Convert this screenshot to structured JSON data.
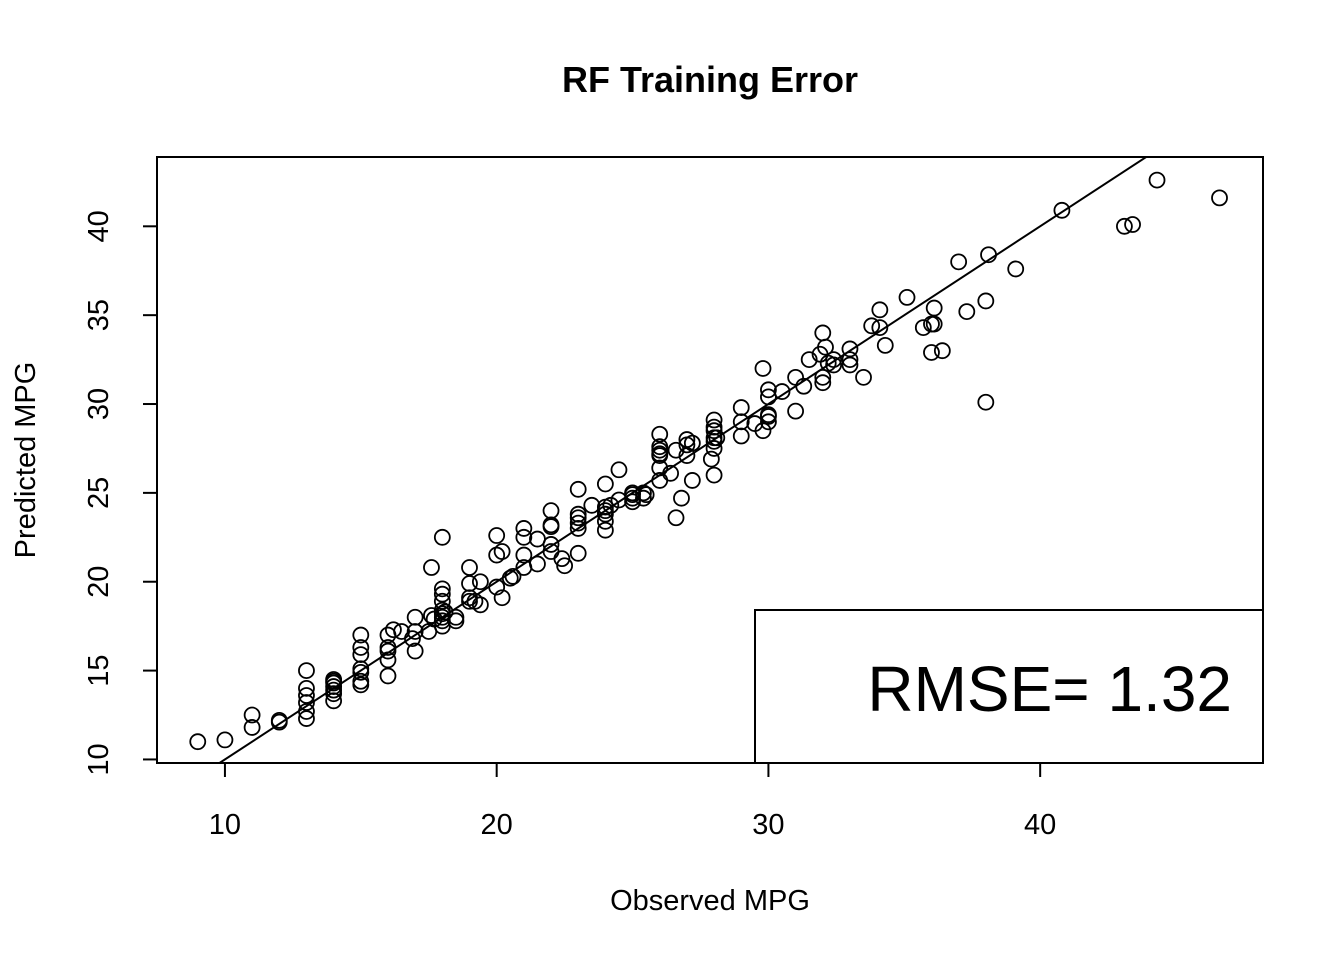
{
  "chart_data": {
    "type": "scatter",
    "title": "RF Training Error",
    "xlabel": "Observed MPG",
    "ylabel": "Predicted MPG",
    "xlim": [
      7.5,
      48.2
    ],
    "ylim": [
      9.8,
      43.9
    ],
    "xticks": [
      10,
      20,
      30,
      40
    ],
    "yticks": [
      10,
      15,
      20,
      25,
      30,
      35,
      40
    ],
    "grid": false,
    "reference_line": {
      "type": "identity",
      "slope": 1,
      "intercept": 0
    },
    "legend": {
      "position": "bottom-right",
      "text": "RMSE= 1.32"
    },
    "points": [
      [
        9,
        11.0
      ],
      [
        10,
        11.1
      ],
      [
        11,
        12.5
      ],
      [
        11,
        11.8
      ],
      [
        12,
        12.1
      ],
      [
        12,
        12.2
      ],
      [
        13,
        15.0
      ],
      [
        13,
        14.0
      ],
      [
        13,
        13.6
      ],
      [
        13,
        13.2
      ],
      [
        13,
        12.7
      ],
      [
        13,
        12.3
      ],
      [
        14,
        14.5
      ],
      [
        14,
        14.4
      ],
      [
        14,
        14.3
      ],
      [
        14,
        14.1
      ],
      [
        14,
        13.9
      ],
      [
        14,
        13.7
      ],
      [
        14,
        13.3
      ],
      [
        15,
        17.0
      ],
      [
        15,
        16.3
      ],
      [
        15,
        15.9
      ],
      [
        15,
        15.1
      ],
      [
        15,
        14.9
      ],
      [
        15,
        14.4
      ],
      [
        15,
        14.2
      ],
      [
        16,
        17.0
      ],
      [
        16,
        16.3
      ],
      [
        16,
        16.1
      ],
      [
        16,
        15.6
      ],
      [
        16,
        14.7
      ],
      [
        16.2,
        17.3
      ],
      [
        16.5,
        17.2
      ],
      [
        16.9,
        16.8
      ],
      [
        17,
        18.0
      ],
      [
        17,
        17.2
      ],
      [
        17,
        16.1
      ],
      [
        17.5,
        17.2
      ],
      [
        17.6,
        18.1
      ],
      [
        17.6,
        20.8
      ],
      [
        17.7,
        17.9
      ],
      [
        18,
        22.5
      ],
      [
        18,
        19.6
      ],
      [
        18,
        19.3
      ],
      [
        18,
        18.9
      ],
      [
        18,
        18.4
      ],
      [
        18,
        18.2
      ],
      [
        18,
        18.0
      ],
      [
        18,
        17.8
      ],
      [
        18,
        17.5
      ],
      [
        18.1,
        18.3
      ],
      [
        18.5,
        18.0
      ],
      [
        18.5,
        17.8
      ],
      [
        19,
        20.8
      ],
      [
        19,
        19.9
      ],
      [
        19,
        19.1
      ],
      [
        19,
        18.9
      ],
      [
        19.2,
        18.9
      ],
      [
        19.4,
        20.0
      ],
      [
        19.4,
        18.7
      ],
      [
        20,
        22.6
      ],
      [
        20,
        21.5
      ],
      [
        20,
        19.7
      ],
      [
        20.2,
        21.7
      ],
      [
        20.2,
        19.1
      ],
      [
        20.5,
        20.2
      ],
      [
        20.6,
        20.3
      ],
      [
        21,
        23.0
      ],
      [
        21,
        22.5
      ],
      [
        21,
        21.5
      ],
      [
        21,
        20.8
      ],
      [
        21.5,
        22.4
      ],
      [
        21.5,
        21.0
      ],
      [
        22,
        24.0
      ],
      [
        22,
        23.2
      ],
      [
        22,
        23.1
      ],
      [
        22,
        22.1
      ],
      [
        22,
        21.7
      ],
      [
        22.4,
        21.3
      ],
      [
        22.5,
        20.9
      ],
      [
        23,
        25.2
      ],
      [
        23,
        23.8
      ],
      [
        23,
        23.6
      ],
      [
        23,
        23.3
      ],
      [
        23,
        23.0
      ],
      [
        23,
        21.6
      ],
      [
        23.5,
        24.3
      ],
      [
        24,
        25.5
      ],
      [
        24,
        24.2
      ],
      [
        24,
        24.0
      ],
      [
        24,
        23.8
      ],
      [
        24,
        23.4
      ],
      [
        24,
        22.9
      ],
      [
        24.2,
        24.3
      ],
      [
        24.5,
        26.3
      ],
      [
        24.5,
        24.6
      ],
      [
        25,
        25.0
      ],
      [
        25,
        24.9
      ],
      [
        25,
        24.7
      ],
      [
        25,
        24.5
      ],
      [
        25.4,
        25.0
      ],
      [
        25.4,
        24.7
      ],
      [
        25.5,
        24.9
      ],
      [
        26,
        28.3
      ],
      [
        26,
        27.6
      ],
      [
        26,
        27.4
      ],
      [
        26,
        27.2
      ],
      [
        26,
        27.1
      ],
      [
        26,
        26.4
      ],
      [
        26,
        25.7
      ],
      [
        26.4,
        26.1
      ],
      [
        26.6,
        23.6
      ],
      [
        26.6,
        27.4
      ],
      [
        26.8,
        24.7
      ],
      [
        27,
        28.0
      ],
      [
        27,
        27.7
      ],
      [
        27,
        27.1
      ],
      [
        27.2,
        27.8
      ],
      [
        27.2,
        25.7
      ],
      [
        27.9,
        26.9
      ],
      [
        28,
        29.1
      ],
      [
        28,
        28.7
      ],
      [
        28,
        28.5
      ],
      [
        28,
        28.1
      ],
      [
        28,
        27.9
      ],
      [
        28,
        27.5
      ],
      [
        28,
        26.0
      ],
      [
        28.1,
        28.1
      ],
      [
        29,
        29.8
      ],
      [
        29,
        29.0
      ],
      [
        29,
        28.2
      ],
      [
        29.5,
        28.9
      ],
      [
        29.8,
        28.5
      ],
      [
        29.8,
        32.0
      ],
      [
        30,
        30.8
      ],
      [
        30,
        30.4
      ],
      [
        30,
        29.4
      ],
      [
        30,
        29.3
      ],
      [
        30,
        29.0
      ],
      [
        30.5,
        30.7
      ],
      [
        31,
        31.5
      ],
      [
        31,
        29.6
      ],
      [
        31.3,
        31.0
      ],
      [
        31.5,
        32.5
      ],
      [
        31.9,
        32.8
      ],
      [
        32,
        34.0
      ],
      [
        32,
        31.5
      ],
      [
        32,
        31.2
      ],
      [
        32.1,
        33.2
      ],
      [
        32.2,
        32.3
      ],
      [
        32.4,
        32.5
      ],
      [
        32.4,
        32.2
      ],
      [
        33,
        33.1
      ],
      [
        33,
        32.5
      ],
      [
        33,
        32.2
      ],
      [
        33.5,
        31.5
      ],
      [
        33.8,
        34.4
      ],
      [
        34.1,
        35.3
      ],
      [
        34.1,
        34.3
      ],
      [
        34.3,
        33.3
      ],
      [
        35.1,
        36.0
      ],
      [
        35.7,
        34.3
      ],
      [
        36,
        34.5
      ],
      [
        36,
        32.9
      ],
      [
        36.1,
        35.4
      ],
      [
        36.1,
        34.5
      ],
      [
        36.4,
        33.0
      ],
      [
        37,
        38.0
      ],
      [
        37.3,
        35.2
      ],
      [
        38,
        35.8
      ],
      [
        38,
        30.1
      ],
      [
        38.1,
        38.4
      ],
      [
        39.1,
        37.6
      ],
      [
        40.8,
        40.9
      ],
      [
        43.1,
        40.0
      ],
      [
        43.4,
        40.1
      ],
      [
        44.3,
        42.6
      ],
      [
        46.6,
        41.6
      ]
    ]
  }
}
